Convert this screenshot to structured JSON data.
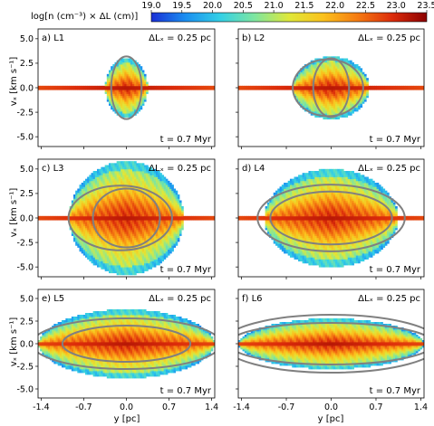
{
  "colorbar": {
    "label": "log[n (cm⁻³) × ΔL (cm)]",
    "ticks": [
      "19.0",
      "19.5",
      "20.0",
      "20.5",
      "21.0",
      "21.5",
      "22.0",
      "22.5",
      "23.0",
      "23.5"
    ],
    "range": [
      19.0,
      23.5
    ],
    "colormap": [
      "#1a2fd6",
      "#1b8ff0",
      "#33d0e6",
      "#7ee6a0",
      "#dfe83a",
      "#fbc11c",
      "#f57a12",
      "#dc2c0b",
      "#8b0000"
    ]
  },
  "axes": {
    "xlabel": "y [pc]",
    "ylabel": "vₓ [km s⁻¹]",
    "xticks": [
      "-1.4",
      "-0.7",
      "0.0",
      "0.7",
      "1.4"
    ],
    "yticks": [
      "5.0",
      "2.5",
      "0.0",
      "-2.5",
      "-5.0"
    ]
  },
  "chart_data": {
    "type": "heatmap",
    "xlim": [
      -1.45,
      1.45
    ],
    "ylim": [
      -6.0,
      6.0
    ],
    "xtick_values": [
      -1.4,
      -0.7,
      0.0,
      0.7,
      1.4
    ],
    "ytick_values": [
      5.0,
      2.5,
      0.0,
      -2.5,
      -5.0
    ],
    "panels": [
      {
        "label": "a) L1",
        "dlz": "ΔLₓ = 0.25 pc",
        "time": "t = 0.7 Myr",
        "extent_pc": 0.35,
        "vmax": 3.0,
        "ellipses": [
          {
            "cx": 0.0,
            "cy": 0.0,
            "rx": 0.25,
            "ry": 3.2
          }
        ]
      },
      {
        "label": "b) L2",
        "dlz": "ΔLₓ = 0.25 pc",
        "time": "t = 0.7 Myr",
        "extent_pc": 0.6,
        "vmax": 3.2,
        "ellipses": [
          {
            "cx": -0.05,
            "cy": 0.0,
            "rx": 0.55,
            "ry": 2.9
          },
          {
            "cx": 0.0,
            "cy": 0.0,
            "rx": 0.28,
            "ry": 3.0
          }
        ]
      },
      {
        "label": "c) L3",
        "dlz": "ΔLₓ = 0.25 pc",
        "time": "t = 0.7 Myr",
        "extent_pc": 0.95,
        "vmax": 5.8,
        "ellipses": [
          {
            "cx": -0.1,
            "cy": 0.0,
            "rx": 0.85,
            "ry": 3.3
          },
          {
            "cx": 0.0,
            "cy": 0.0,
            "rx": 0.55,
            "ry": 3.0
          }
        ]
      },
      {
        "label": "d) L4",
        "dlz": "ΔLₓ = 0.25 pc",
        "time": "t = 0.7 Myr",
        "extent_pc": 1.05,
        "vmax": 5.0,
        "ellipses": [
          {
            "cx": 0.0,
            "cy": 0.0,
            "rx": 1.15,
            "ry": 3.4
          },
          {
            "cx": 0.0,
            "cy": 0.0,
            "rx": 0.95,
            "ry": 2.7
          }
        ]
      },
      {
        "label": "e) L5",
        "dlz": "ΔLₓ = 0.25 pc",
        "time": "t = 0.7 Myr",
        "extent_pc": 1.45,
        "vmax": 3.8,
        "ellipses": [
          {
            "cx": 0.0,
            "cy": 0.0,
            "rx": 1.55,
            "ry": 2.8
          },
          {
            "cx": 0.0,
            "cy": 0.0,
            "rx": 1.05,
            "ry": 2.0
          }
        ]
      },
      {
        "label": "f) L6",
        "dlz": "ΔLₓ = 0.25 pc",
        "time": "t = 0.7 Myr",
        "extent_pc": 1.45,
        "vmax": 2.8,
        "ellipses": [
          {
            "cx": 0.0,
            "cy": 0.0,
            "rx": 1.7,
            "ry": 3.2
          },
          {
            "cx": 0.0,
            "cy": 0.0,
            "rx": 1.6,
            "ry": 2.3
          }
        ]
      }
    ]
  }
}
